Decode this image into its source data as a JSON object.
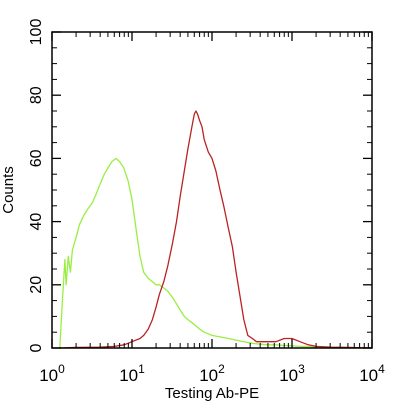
{
  "chart_data": {
    "type": "line",
    "xlabel": "Testing Ab-PE",
    "ylabel": "Counts",
    "x_scale": "log",
    "xlim": [
      1,
      10000
    ],
    "ylim": [
      0,
      100
    ],
    "x_ticks": [
      {
        "value": 1,
        "base": "10",
        "exp": "0"
      },
      {
        "value": 10,
        "base": "10",
        "exp": "1"
      },
      {
        "value": 100,
        "base": "10",
        "exp": "2"
      },
      {
        "value": 1000,
        "base": "10",
        "exp": "3"
      },
      {
        "value": 10000,
        "base": "10",
        "exp": "4"
      }
    ],
    "y_ticks": [
      "0",
      "20",
      "40",
      "60",
      "80",
      "100"
    ],
    "grid": false,
    "series": [
      {
        "color": "#99ee44",
        "x": [
          1.25,
          1.35,
          1.45,
          1.5,
          1.6,
          1.7,
          1.8,
          2.0,
          2.2,
          2.5,
          2.8,
          3.2,
          3.6,
          4.0,
          4.5,
          5.0,
          5.6,
          6.3,
          7.0,
          7.9,
          8.9,
          10,
          11.2,
          12.6,
          14,
          16,
          18,
          20,
          22,
          25,
          28,
          32,
          36,
          40,
          45,
          50,
          56,
          63,
          70,
          80,
          90,
          100,
          126,
          160,
          200,
          250,
          320,
          400,
          500,
          630,
          800,
          1000,
          1260,
          1600,
          2000,
          3000,
          10000
        ],
        "y": [
          0,
          15,
          28,
          20,
          29,
          24,
          31,
          35,
          39,
          42,
          44,
          46,
          49,
          52,
          55,
          57,
          59,
          60,
          59,
          57,
          53,
          47,
          38,
          29,
          24,
          22,
          21,
          20,
          20,
          19,
          18,
          16,
          14,
          12,
          10,
          9,
          8,
          7,
          6,
          5,
          4.5,
          4,
          3.5,
          3,
          2.5,
          2,
          1.5,
          1.2,
          1,
          1,
          0.8,
          0.7,
          0.5,
          0.5,
          0.3,
          0.1,
          0
        ]
      },
      {
        "color": "#bb2222",
        "x": [
          1.25,
          2,
          4,
          6,
          8,
          10,
          12.6,
          14,
          16,
          18,
          20,
          22,
          25,
          28,
          32,
          36,
          40,
          45,
          50,
          56,
          60,
          63,
          66,
          70,
          75,
          80,
          90,
          100,
          112,
          126,
          140,
          160,
          180,
          200,
          225,
          250,
          280,
          320,
          360,
          400,
          500,
          630,
          800,
          1000,
          1260,
          1600,
          2000,
          3000,
          5000,
          10000
        ],
        "y": [
          0,
          0.2,
          0.3,
          0.5,
          1,
          2,
          3,
          4,
          6,
          9,
          13,
          17,
          21,
          26,
          33,
          40,
          48,
          56,
          63,
          70,
          74,
          75,
          74,
          72,
          70,
          66,
          62,
          60,
          56,
          50,
          45,
          38,
          32,
          24,
          16,
          9,
          4,
          3,
          2,
          2,
          2,
          2,
          3,
          3,
          2,
          1,
          0.5,
          0.3,
          0.2,
          0
        ]
      }
    ]
  }
}
